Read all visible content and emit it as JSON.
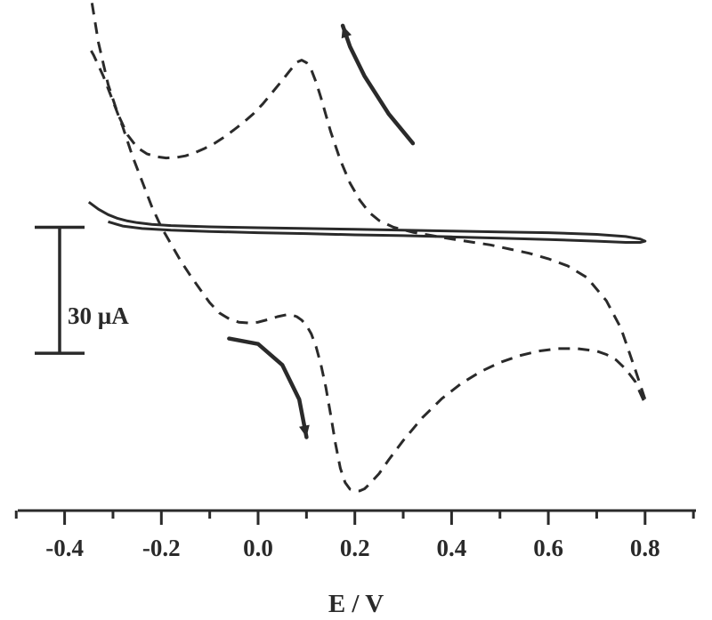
{
  "chart_data": {
    "type": "line",
    "title": "",
    "xlabel": "E / V",
    "ylabel": "",
    "xlim": [
      -0.5,
      0.9
    ],
    "x_ticks": [
      -0.4,
      -0.2,
      0.0,
      0.2,
      0.4,
      0.6,
      0.8
    ],
    "x_tick_labels": [
      "-0.4",
      "-0.2",
      "0.0",
      "0.2",
      "0.4",
      "0.6",
      "0.8"
    ],
    "y_units": "µA",
    "ylim": [
      -60,
      75
    ],
    "scale_bar": {
      "label": "30 µA",
      "value": 30,
      "y_from": -14,
      "y_to": 16
    },
    "series": [
      {
        "style": "dashed",
        "x": [
          -0.35,
          -0.33,
          -0.31,
          -0.29,
          -0.27,
          -0.25,
          -0.23,
          -0.21,
          -0.19,
          -0.17,
          -0.15,
          -0.13,
          -0.11,
          -0.09,
          -0.07,
          -0.05,
          -0.03,
          -0.01,
          0.01,
          0.03,
          0.05,
          0.065,
          0.08,
          0.09,
          0.1,
          0.11,
          0.12,
          0.13,
          0.14,
          0.15,
          0.17,
          0.19,
          0.21,
          0.23,
          0.25,
          0.28,
          0.32,
          0.36,
          0.4,
          0.44,
          0.48,
          0.52,
          0.56,
          0.6,
          0.64,
          0.68,
          0.72,
          0.75,
          0.78,
          0.8,
          0.8,
          0.79,
          0.78,
          0.76,
          0.74,
          0.72,
          0.7,
          0.66,
          0.62,
          0.58,
          0.54,
          0.5,
          0.46,
          0.42,
          0.38,
          0.34,
          0.3,
          0.27,
          0.25,
          0.23,
          0.22,
          0.21,
          0.2,
          0.19,
          0.18,
          0.17,
          0.16,
          0.15,
          0.14,
          0.13,
          0.12,
          0.11,
          0.1,
          0.09,
          0.08,
          0.07,
          0.06,
          0.04,
          0.02,
          0.0,
          -0.02,
          -0.04,
          -0.06,
          -0.08,
          -0.1,
          -0.12,
          -0.14,
          -0.16,
          -0.18,
          -0.2,
          -0.22,
          -0.24,
          -0.26,
          -0.28,
          -0.3,
          -0.32,
          -0.34,
          -0.35
        ],
        "y": [
          74,
          60,
          50,
          43,
          38,
          35,
          33.5,
          32.8,
          32.5,
          32.6,
          33,
          33.8,
          34.8,
          36,
          37.5,
          39.2,
          41,
          43,
          45.4,
          48.2,
          51,
          53.2,
          55.3,
          55.8,
          55.2,
          53.5,
          50.5,
          46.8,
          42.8,
          38.8,
          32,
          26.5,
          22.5,
          19.5,
          17.6,
          16,
          14.8,
          14,
          13.2,
          12.5,
          11.8,
          10.8,
          9.8,
          8.5,
          6.8,
          4,
          -1.5,
          -8,
          -18,
          -25,
          -26,
          -23.5,
          -20.8,
          -17.8,
          -15.6,
          -14.3,
          -13.5,
          -12.9,
          -12.9,
          -13.5,
          -14.6,
          -16.2,
          -18.4,
          -21.2,
          -24.8,
          -29.3,
          -34.8,
          -39.4,
          -42.7,
          -45.2,
          -46.3,
          -46.8,
          -46.8,
          -46.4,
          -44.8,
          -41.4,
          -35.6,
          -28.6,
          -22.1,
          -16.8,
          -12.5,
          -9.4,
          -7.4,
          -6.1,
          -5.3,
          -4.9,
          -4.8,
          -5.3,
          -6,
          -6.6,
          -6.8,
          -6.6,
          -5.8,
          -4.4,
          -2,
          1.2,
          4.5,
          8,
          12,
          16,
          21,
          27,
          33,
          40,
          46,
          52,
          57,
          59
        ]
      },
      {
        "style": "solid",
        "x": [
          -0.35,
          -0.33,
          -0.31,
          -0.29,
          -0.27,
          -0.25,
          -0.22,
          -0.18,
          -0.1,
          0.0,
          0.1,
          0.2,
          0.3,
          0.4,
          0.5,
          0.6,
          0.7,
          0.76,
          0.79,
          0.8,
          0.79,
          0.76,
          0.7,
          0.6,
          0.5,
          0.4,
          0.3,
          0.2,
          0.1,
          0.0,
          -0.1,
          -0.18,
          -0.24,
          -0.28,
          -0.31
        ],
        "y": [
          22,
          20.3,
          19,
          18.1,
          17.5,
          17.1,
          16.7,
          16.4,
          16.1,
          15.9,
          15.7,
          15.5,
          15.3,
          15.1,
          14.9,
          14.7,
          14.3,
          13.8,
          13.2,
          12.7,
          12.4,
          12.4,
          12.7,
          13.1,
          13.4,
          13.7,
          14.0,
          14.2,
          14.5,
          14.7,
          15.0,
          15.3,
          15.7,
          16.3,
          17.3
        ]
      }
    ],
    "arrows": [
      {
        "x": [
          0.32,
          0.27,
          0.22,
          0.19,
          0.175
        ],
        "y": [
          36,
          43,
          52,
          59,
          64
        ]
      },
      {
        "x": [
          -0.06,
          0.0,
          0.05,
          0.085,
          0.1
        ],
        "y": [
          -10.5,
          -11.8,
          -16.8,
          -25,
          -34
        ]
      }
    ]
  }
}
